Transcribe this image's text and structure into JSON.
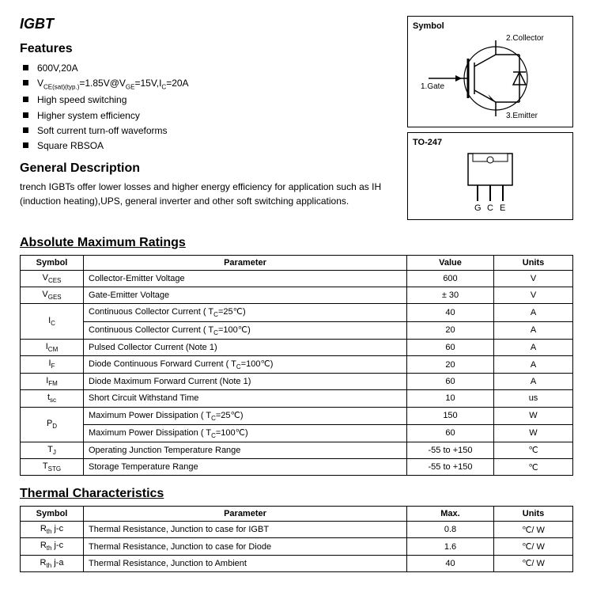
{
  "title": "IGBT",
  "features_heading": "Features",
  "features": [
    "600V,20A",
    "V_CE(sat)(typ.)=1.85V@V_GE=15V,I_C=20A",
    "High speed switching",
    "Higher system efficiency",
    "Soft current turn-off waveforms",
    "Square RBSOA"
  ],
  "gen_desc_heading": "General Description",
  "gen_desc": "trench IGBTs offer lower losses and higher energy efficiency for application such as IH (induction heating),UPS, general inverter and other soft switching applications.",
  "symbol_label": "Symbol",
  "symbol_pins": {
    "gate": "1.Gate",
    "collector": "2.Collector",
    "emitter": "3.Emitter"
  },
  "pkg_label": "TO-247",
  "pkg_pins": [
    "G",
    "C",
    "E"
  ],
  "amr_heading": "Absolute Maximum Ratings",
  "amr_headers": [
    "Symbol",
    "Parameter",
    "Value",
    "Units"
  ],
  "amr_rows": [
    {
      "sym": "V_CES",
      "param": "Collector-Emitter Voltage",
      "val": "600",
      "unit": "V",
      "rowspan": 1
    },
    {
      "sym": "V_GES",
      "param": "Gate-Emitter Voltage",
      "val": "± 30",
      "unit": "V",
      "rowspan": 1
    },
    {
      "sym": "I_C",
      "param": "Continuous Collector Current ( T_C=25℃)",
      "val": "40",
      "unit": "A",
      "rowspan": 2
    },
    {
      "sym": "",
      "param": "Continuous Collector Current ( T_C=100℃)",
      "val": "20",
      "unit": "A",
      "rowspan": 0
    },
    {
      "sym": "I_CM",
      "param": "Pulsed Collector Current (Note 1)",
      "val": "60",
      "unit": "A",
      "rowspan": 1
    },
    {
      "sym": "I_F",
      "param": "Diode Continuous Forward Current ( T_C=100℃)",
      "val": "20",
      "unit": "A",
      "rowspan": 1
    },
    {
      "sym": "I_FM",
      "param": "Diode Maximum Forward Current (Note 1)",
      "val": "60",
      "unit": "A",
      "rowspan": 1
    },
    {
      "sym": "t_sc",
      "param": "Short Circuit Withstand Time",
      "val": "10",
      "unit": "us",
      "rowspan": 1
    },
    {
      "sym": "P_D",
      "param": "Maximum Power Dissipation ( T_C=25℃)",
      "val": "150",
      "unit": "W",
      "rowspan": 2
    },
    {
      "sym": "",
      "param": "Maximum Power Dissipation ( T_C=100℃)",
      "val": "60",
      "unit": "W",
      "rowspan": 0
    },
    {
      "sym": "T_J",
      "param": "Operating Junction Temperature Range",
      "val": "-55 to +150",
      "unit": "℃",
      "rowspan": 1
    },
    {
      "sym": "T_STG",
      "param": "Storage Temperature Range",
      "val": "-55 to +150",
      "unit": "℃",
      "rowspan": 1
    }
  ],
  "thermal_heading": "Thermal Characteristics",
  "thermal_headers": [
    "Symbol",
    "Parameter",
    "Max.",
    "Units"
  ],
  "thermal_rows": [
    {
      "sym": "R_th j-c",
      "param": "Thermal Resistance, Junction to case for IGBT",
      "val": "0.8",
      "unit": "℃/ W"
    },
    {
      "sym": "R_th j-c",
      "param": "Thermal Resistance, Junction to case for Diode",
      "val": "1.6",
      "unit": "℃/ W"
    },
    {
      "sym": "R_th j-a",
      "param": "Thermal Resistance, Junction to Ambient",
      "val": "40",
      "unit": "℃/ W"
    }
  ],
  "colors": {
    "stroke": "#000000",
    "bg": "#ffffff"
  }
}
